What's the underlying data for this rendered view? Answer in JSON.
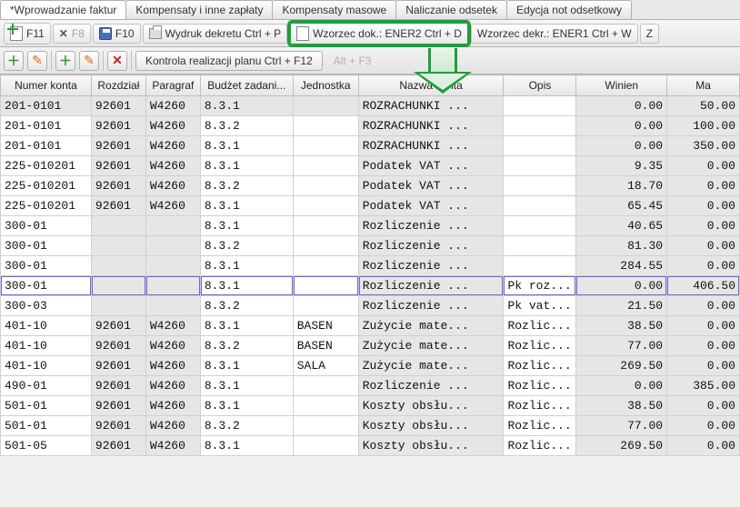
{
  "main_tabs": {
    "items": [
      {
        "label": "*Wprowadzanie faktur",
        "active": true
      },
      {
        "label": "Kompensaty i inne zapłaty",
        "active": false
      },
      {
        "label": "Kompensaty masowe",
        "active": false
      },
      {
        "label": "Naliczanie odsetek",
        "active": false
      },
      {
        "label": "Edycja not odsetkowy",
        "active": false
      }
    ]
  },
  "sec_tabs": {
    "items": [
      {
        "icon": "plus",
        "label": "F11",
        "muted": false
      },
      {
        "icon": "x",
        "label": "F8",
        "muted": true
      },
      {
        "icon": "disk",
        "label": "F10",
        "muted": false
      },
      {
        "icon": "print",
        "label": "Wydruk dekretu Ctrl + P",
        "muted": false
      },
      {
        "icon": "doc",
        "label": "Wzorzec dok.: ENER2 Ctrl + D",
        "muted": false,
        "highlight": true
      },
      {
        "icon": "",
        "label": "Wzorzec dekr.: ENER1 Ctrl + W",
        "muted": false
      },
      {
        "icon": "",
        "label": "Z",
        "muted": false
      }
    ]
  },
  "toolbar": {
    "control_label": "Kontrola realizacji planu Ctrl + F12",
    "faded_label": "Alt + F3"
  },
  "table": {
    "columns": [
      "Numer konta",
      "Rozdział",
      "Paragraf",
      "Budżet zadani...",
      "Jednostka",
      "Nazwa konta",
      "Opis",
      "Winien",
      "Ma"
    ],
    "rows": [
      {
        "sel": false,
        "cells": [
          "201-0101",
          "92601",
          "W4260",
          "8.3.1",
          "",
          "ROZRACHUNKI ...",
          "",
          "0.00",
          "50.00"
        ],
        "bg": [
          "g",
          "g",
          "g",
          "g",
          "g",
          "g",
          "w",
          "g",
          "g"
        ]
      },
      {
        "sel": false,
        "cells": [
          "201-0101",
          "92601",
          "W4260",
          "8.3.2",
          "",
          "ROZRACHUNKI ...",
          "",
          "0.00",
          "100.00"
        ],
        "bg": [
          "w",
          "g",
          "g",
          "w",
          "w",
          "g",
          "w",
          "g",
          "g"
        ]
      },
      {
        "sel": false,
        "cells": [
          "201-0101",
          "92601",
          "W4260",
          "8.3.1",
          "",
          "ROZRACHUNKI ...",
          "",
          "0.00",
          "350.00"
        ],
        "bg": [
          "w",
          "g",
          "g",
          "w",
          "w",
          "g",
          "w",
          "g",
          "g"
        ]
      },
      {
        "sel": false,
        "cells": [
          "225-010201",
          "92601",
          "W4260",
          "8.3.1",
          "",
          "Podatek VAT ...",
          "",
          "9.35",
          "0.00"
        ],
        "bg": [
          "w",
          "g",
          "g",
          "w",
          "w",
          "g",
          "w",
          "g",
          "g"
        ]
      },
      {
        "sel": false,
        "cells": [
          "225-010201",
          "92601",
          "W4260",
          "8.3.2",
          "",
          "Podatek VAT ...",
          "",
          "18.70",
          "0.00"
        ],
        "bg": [
          "w",
          "g",
          "g",
          "w",
          "w",
          "g",
          "w",
          "g",
          "g"
        ]
      },
      {
        "sel": false,
        "cells": [
          "225-010201",
          "92601",
          "W4260",
          "8.3.1",
          "",
          "Podatek VAT ...",
          "",
          "65.45",
          "0.00"
        ],
        "bg": [
          "w",
          "g",
          "g",
          "w",
          "w",
          "g",
          "w",
          "g",
          "g"
        ]
      },
      {
        "sel": false,
        "cells": [
          "300-01",
          "",
          "",
          "8.3.1",
          "",
          "Rozliczenie ...",
          "",
          "40.65",
          "0.00"
        ],
        "bg": [
          "w",
          "g",
          "g",
          "w",
          "w",
          "g",
          "w",
          "g",
          "g"
        ]
      },
      {
        "sel": false,
        "cells": [
          "300-01",
          "",
          "",
          "8.3.2",
          "",
          "Rozliczenie ...",
          "",
          "81.30",
          "0.00"
        ],
        "bg": [
          "w",
          "g",
          "g",
          "w",
          "w",
          "g",
          "w",
          "g",
          "g"
        ]
      },
      {
        "sel": false,
        "cells": [
          "300-01",
          "",
          "",
          "8.3.1",
          "",
          "Rozliczenie ...",
          "",
          "284.55",
          "0.00"
        ],
        "bg": [
          "w",
          "g",
          "g",
          "w",
          "w",
          "g",
          "w",
          "g",
          "g"
        ]
      },
      {
        "sel": true,
        "cells": [
          "300-01",
          "",
          "",
          "8.3.1",
          "",
          "Rozliczenie ...",
          "Pk roz...",
          "0.00",
          "406.50"
        ],
        "bg": [
          "w",
          "g",
          "g",
          "w",
          "w",
          "g",
          "w",
          "g",
          "g"
        ]
      },
      {
        "sel": false,
        "cells": [
          "300-03",
          "",
          "",
          "8.3.2",
          "",
          "Rozliczenie ...",
          "Pk vat...",
          "21.50",
          "0.00"
        ],
        "bg": [
          "w",
          "g",
          "g",
          "w",
          "w",
          "g",
          "w",
          "g",
          "g"
        ]
      },
      {
        "sel": false,
        "cells": [
          "401-10",
          "92601",
          "W4260",
          "8.3.1",
          "BASEN",
          "Zużycie mate...",
          "Rozlic...",
          "38.50",
          "0.00"
        ],
        "bg": [
          "w",
          "g",
          "g",
          "w",
          "w",
          "g",
          "w",
          "g",
          "g"
        ]
      },
      {
        "sel": false,
        "cells": [
          "401-10",
          "92601",
          "W4260",
          "8.3.2",
          "BASEN",
          "Zużycie mate...",
          "Rozlic...",
          "77.00",
          "0.00"
        ],
        "bg": [
          "w",
          "g",
          "g",
          "w",
          "w",
          "g",
          "w",
          "g",
          "g"
        ]
      },
      {
        "sel": false,
        "cells": [
          "401-10",
          "92601",
          "W4260",
          "8.3.1",
          "SALA",
          "Zużycie mate...",
          "Rozlic...",
          "269.50",
          "0.00"
        ],
        "bg": [
          "w",
          "g",
          "g",
          "w",
          "w",
          "g",
          "w",
          "g",
          "g"
        ]
      },
      {
        "sel": false,
        "cells": [
          "490-01",
          "92601",
          "W4260",
          "8.3.1",
          "",
          "Rozliczenie ...",
          "Rozlic...",
          "0.00",
          "385.00"
        ],
        "bg": [
          "w",
          "g",
          "g",
          "w",
          "w",
          "g",
          "w",
          "g",
          "g"
        ]
      },
      {
        "sel": false,
        "cells": [
          "501-01",
          "92601",
          "W4260",
          "8.3.1",
          "",
          "Koszty obsłu...",
          "Rozlic...",
          "38.50",
          "0.00"
        ],
        "bg": [
          "w",
          "g",
          "g",
          "w",
          "w",
          "g",
          "w",
          "g",
          "g"
        ]
      },
      {
        "sel": false,
        "cells": [
          "501-01",
          "92601",
          "W4260",
          "8.3.2",
          "",
          "Koszty obsłu...",
          "Rozlic...",
          "77.00",
          "0.00"
        ],
        "bg": [
          "w",
          "g",
          "g",
          "w",
          "w",
          "g",
          "w",
          "g",
          "g"
        ]
      },
      {
        "sel": false,
        "cells": [
          "501-05",
          "92601",
          "W4260",
          "8.3.1",
          "",
          "Koszty obsłu...",
          "Rozlic...",
          "269.50",
          "0.00"
        ],
        "bg": [
          "w",
          "g",
          "g",
          "w",
          "w",
          "g",
          "w",
          "g",
          "g"
        ]
      }
    ],
    "numeric_cols": [
      7,
      8
    ],
    "colors": {
      "grey_cell": "#e6e6e6",
      "white_cell": "#ffffff",
      "header_bg_top": "#f8f8f8",
      "header_bg_bot": "#e6e6e6",
      "border": "#d0d0d0",
      "highlight_green": "#1aa03a"
    }
  }
}
